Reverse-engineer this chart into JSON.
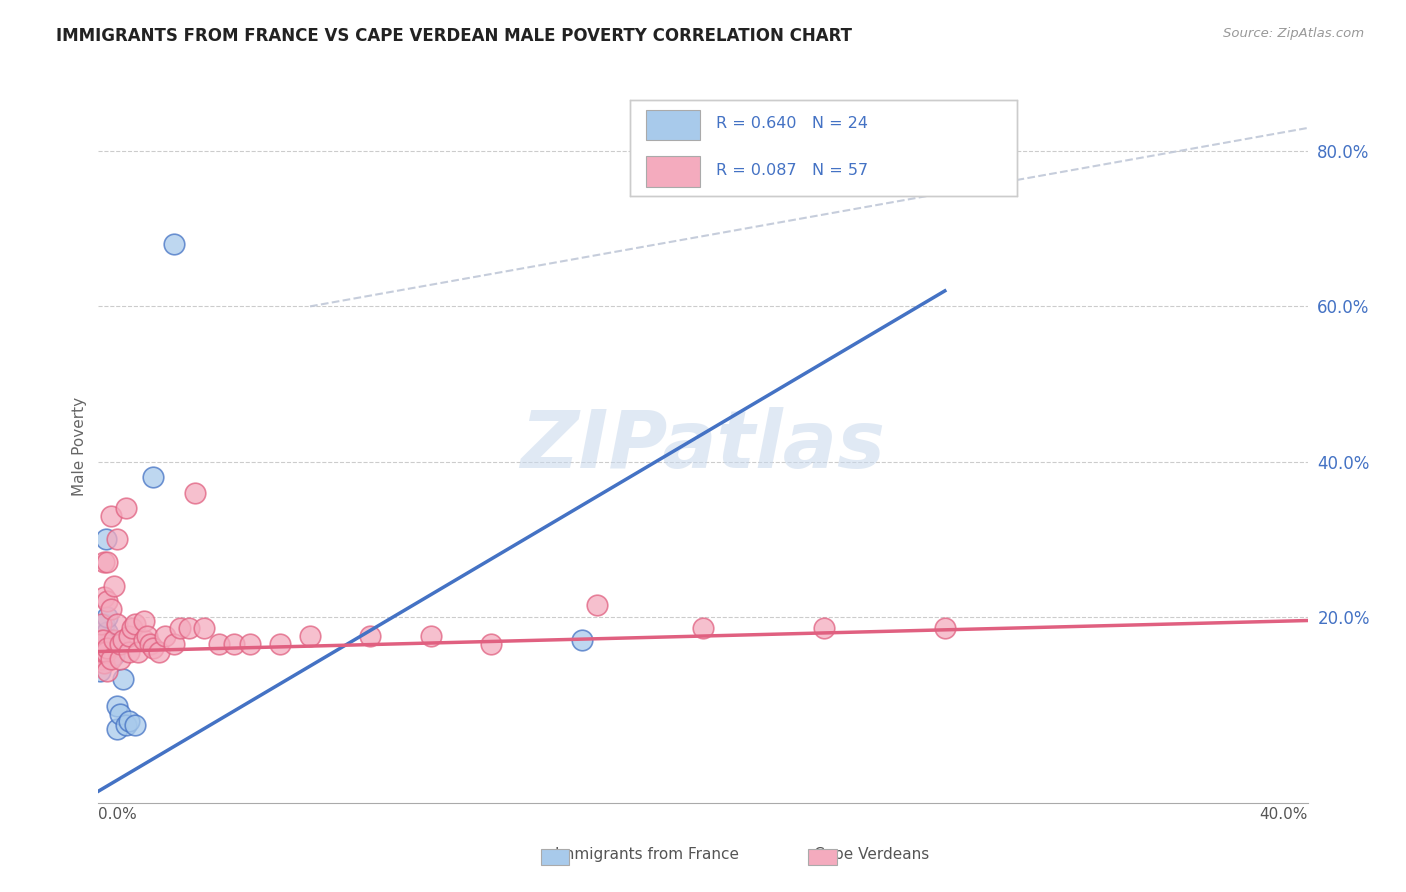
{
  "title": "IMMIGRANTS FROM FRANCE VS CAPE VERDEAN MALE POVERTY CORRELATION CHART",
  "source": "Source: ZipAtlas.com",
  "ylabel": "Male Poverty",
  "right_ytick_vals": [
    0.8,
    0.6,
    0.4,
    0.2
  ],
  "right_ytick_labels": [
    "80.0%",
    "60.0%",
    "40.0%",
    "20.0%"
  ],
  "xlim": [
    0.0,
    0.4
  ],
  "ylim": [
    -0.04,
    0.88
  ],
  "color_blue": "#A8CAEB",
  "color_pink": "#F4ABBE",
  "color_blue_line": "#4472C4",
  "color_pink_line": "#E06080",
  "color_diag_line": "#C0C8D8",
  "watermark": "ZIPatlas",
  "blue_line_x0": 0.0,
  "blue_line_y0": -0.025,
  "blue_line_x1": 0.28,
  "blue_line_y1": 0.62,
  "pink_line_x0": 0.0,
  "pink_line_y0": 0.155,
  "pink_line_x1": 0.4,
  "pink_line_y1": 0.195,
  "diag_line_x0": 0.07,
  "diag_line_y0": 0.6,
  "diag_line_x1": 0.4,
  "diag_line_y1": 0.83,
  "france_x": [
    0.0005,
    0.001,
    0.001,
    0.0015,
    0.002,
    0.002,
    0.002,
    0.0025,
    0.003,
    0.003,
    0.003,
    0.004,
    0.004,
    0.005,
    0.005,
    0.006,
    0.006,
    0.007,
    0.008,
    0.009,
    0.01,
    0.012,
    0.018,
    0.025,
    0.16
  ],
  "france_y": [
    0.13,
    0.155,
    0.17,
    0.16,
    0.155,
    0.175,
    0.19,
    0.3,
    0.165,
    0.18,
    0.2,
    0.165,
    0.17,
    0.15,
    0.165,
    0.055,
    0.085,
    0.075,
    0.12,
    0.06,
    0.065,
    0.06,
    0.38,
    0.68,
    0.17
  ],
  "cape_x": [
    0.0005,
    0.0005,
    0.001,
    0.001,
    0.001,
    0.001,
    0.0015,
    0.0015,
    0.002,
    0.002,
    0.002,
    0.002,
    0.0025,
    0.003,
    0.003,
    0.003,
    0.003,
    0.004,
    0.004,
    0.004,
    0.005,
    0.005,
    0.006,
    0.006,
    0.007,
    0.007,
    0.008,
    0.009,
    0.01,
    0.01,
    0.011,
    0.012,
    0.013,
    0.015,
    0.015,
    0.016,
    0.017,
    0.018,
    0.02,
    0.022,
    0.025,
    0.027,
    0.03,
    0.032,
    0.035,
    0.04,
    0.045,
    0.05,
    0.06,
    0.07,
    0.09,
    0.11,
    0.13,
    0.165,
    0.2,
    0.24,
    0.28
  ],
  "cape_y": [
    0.155,
    0.165,
    0.145,
    0.155,
    0.17,
    0.19,
    0.155,
    0.17,
    0.14,
    0.155,
    0.225,
    0.27,
    0.155,
    0.13,
    0.16,
    0.22,
    0.27,
    0.145,
    0.21,
    0.33,
    0.17,
    0.24,
    0.19,
    0.3,
    0.145,
    0.165,
    0.17,
    0.34,
    0.155,
    0.175,
    0.185,
    0.19,
    0.155,
    0.17,
    0.195,
    0.175,
    0.165,
    0.16,
    0.155,
    0.175,
    0.165,
    0.185,
    0.185,
    0.36,
    0.185,
    0.165,
    0.165,
    0.165,
    0.165,
    0.175,
    0.175,
    0.175,
    0.165,
    0.215,
    0.185,
    0.185,
    0.185
  ]
}
